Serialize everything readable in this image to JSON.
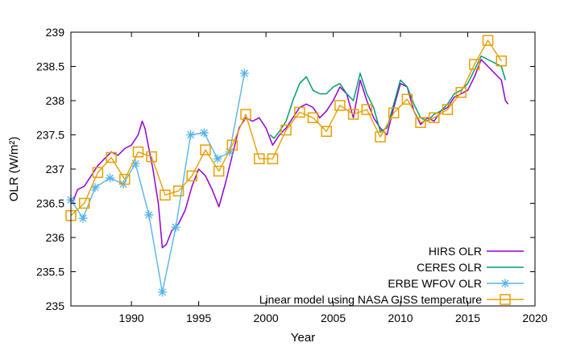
{
  "chart_data": {
    "type": "line",
    "xlabel": "Year",
    "ylabel": "OLR (W/m²)",
    "xlim": [
      1985.5,
      2020
    ],
    "ylim": [
      235,
      239
    ],
    "xticks": [
      1990,
      1995,
      2000,
      2005,
      2010,
      2015,
      2020
    ],
    "xtick_labels": [
      "1990",
      "1995",
      "2000",
      "2005",
      "2010",
      "2015",
      "2020"
    ],
    "yticks": [
      235,
      235.5,
      236,
      236.5,
      237,
      237.5,
      238,
      238.5,
      239
    ],
    "ytick_labels": [
      "235",
      "235.5",
      "236",
      "236.5",
      "237",
      "237.5",
      "238",
      "238.5",
      "239"
    ],
    "grid": false,
    "legend_position": "bottom-right",
    "series": [
      {
        "name": "HIRS OLR",
        "color": "#9400D3",
        "style": "line",
        "x": [
          1985.6,
          1986.0,
          1986.5,
          1987.0,
          1987.5,
          1988.0,
          1988.5,
          1989.0,
          1989.5,
          1990.0,
          1990.5,
          1990.8,
          1991.0,
          1991.3,
          1991.6,
          1992.0,
          1992.3,
          1992.6,
          1993.0,
          1993.5,
          1994.0,
          1994.5,
          1995.0,
          1995.5,
          1996.0,
          1996.5,
          1997.0,
          1997.5,
          1998.0,
          1998.5,
          1999.0,
          1999.5,
          2000.0,
          2000.5,
          2001.0,
          2001.5,
          2002.0,
          2002.5,
          2003.0,
          2003.5,
          2004.0,
          2004.5,
          2005.0,
          2005.5,
          2006.0,
          2006.5,
          2007.0,
          2007.5,
          2008.0,
          2008.5,
          2009.0,
          2009.5,
          2010.0,
          2010.5,
          2011.0,
          2011.5,
          2012.0,
          2012.5,
          2013.0,
          2013.5,
          2014.0,
          2014.5,
          2015.0,
          2015.5,
          2016.0,
          2016.5,
          2017.0,
          2017.5,
          2017.8,
          2018.0
        ],
        "y": [
          236.5,
          236.7,
          236.75,
          236.9,
          237.05,
          237.15,
          237.25,
          237.2,
          237.3,
          237.35,
          237.5,
          237.7,
          237.6,
          237.3,
          237.0,
          236.5,
          235.85,
          235.9,
          236.1,
          236.2,
          236.4,
          236.75,
          237.0,
          236.9,
          236.7,
          236.45,
          236.8,
          237.2,
          237.6,
          237.75,
          237.7,
          237.75,
          237.6,
          237.35,
          237.5,
          237.6,
          237.75,
          237.9,
          237.95,
          237.9,
          237.75,
          237.85,
          238.0,
          238.2,
          238.1,
          237.75,
          238.3,
          238.0,
          237.75,
          237.6,
          237.5,
          237.9,
          238.25,
          238.2,
          237.85,
          237.65,
          237.75,
          237.7,
          237.85,
          237.9,
          238.05,
          238.1,
          238.15,
          238.35,
          238.6,
          238.5,
          238.4,
          238.3,
          238.0,
          237.95
        ]
      },
      {
        "name": "CERES OLR",
        "color": "#009E73",
        "style": "line",
        "x": [
          2000.3,
          2000.6,
          2001.0,
          2001.5,
          2002.0,
          2002.5,
          2003.0,
          2003.5,
          2004.0,
          2004.5,
          2005.0,
          2005.5,
          2006.0,
          2006.5,
          2007.0,
          2007.5,
          2008.0,
          2008.5,
          2009.0,
          2009.5,
          2010.0,
          2010.5,
          2011.0,
          2011.5,
          2012.0,
          2012.5,
          2013.0,
          2013.5,
          2014.0,
          2014.5,
          2015.0,
          2015.5,
          2016.0,
          2016.5,
          2017.0,
          2017.5,
          2017.8
        ],
        "y": [
          237.5,
          237.45,
          237.55,
          237.7,
          238.0,
          238.25,
          238.35,
          238.15,
          238.1,
          238.1,
          238.2,
          238.25,
          238.1,
          238.0,
          238.4,
          238.1,
          237.9,
          237.55,
          237.6,
          237.95,
          238.3,
          238.2,
          237.95,
          237.75,
          237.7,
          237.8,
          237.85,
          237.95,
          238.1,
          238.15,
          238.25,
          238.45,
          238.65,
          238.6,
          238.55,
          238.5,
          238.3
        ]
      },
      {
        "name": "ERBE WFOV OLR",
        "color": "#56B4E9",
        "style": "line-star",
        "x": [
          1985.5,
          1986.4,
          1987.3,
          1988.4,
          1989.4,
          1990.3,
          1991.3,
          1992.3,
          1993.3,
          1994.4,
          1995.4,
          1996.4,
          1997.3,
          1998.4
        ],
        "y": [
          236.55,
          236.28,
          236.73,
          236.87,
          236.78,
          237.08,
          236.33,
          235.2,
          236.15,
          237.5,
          237.53,
          237.15,
          237.25,
          238.4
        ]
      },
      {
        "name": "Linear model using NASA GISS temperature",
        "color": "#E69F00",
        "style": "line-square",
        "x": [
          1985.5,
          1986.5,
          1987.5,
          1988.5,
          1989.5,
          1990.5,
          1991.5,
          1992.5,
          1993.5,
          1994.5,
          1995.5,
          1996.5,
          1997.5,
          1998.5,
          1999.5,
          2000.5,
          2001.5,
          2002.5,
          2003.5,
          2004.5,
          2005.5,
          2006.5,
          2007.5,
          2008.5,
          2009.5,
          2010.5,
          2011.5,
          2012.5,
          2013.5,
          2014.5,
          2015.5,
          2016.5,
          2017.5
        ],
        "y": [
          236.32,
          236.5,
          236.95,
          237.17,
          236.85,
          237.25,
          237.18,
          236.62,
          236.68,
          236.9,
          237.28,
          236.97,
          237.35,
          237.8,
          237.15,
          237.15,
          237.57,
          237.83,
          237.75,
          237.55,
          237.93,
          237.8,
          237.87,
          237.47,
          237.82,
          238.02,
          237.68,
          237.75,
          237.87,
          238.12,
          238.53,
          238.88,
          238.58
        ]
      }
    ]
  }
}
